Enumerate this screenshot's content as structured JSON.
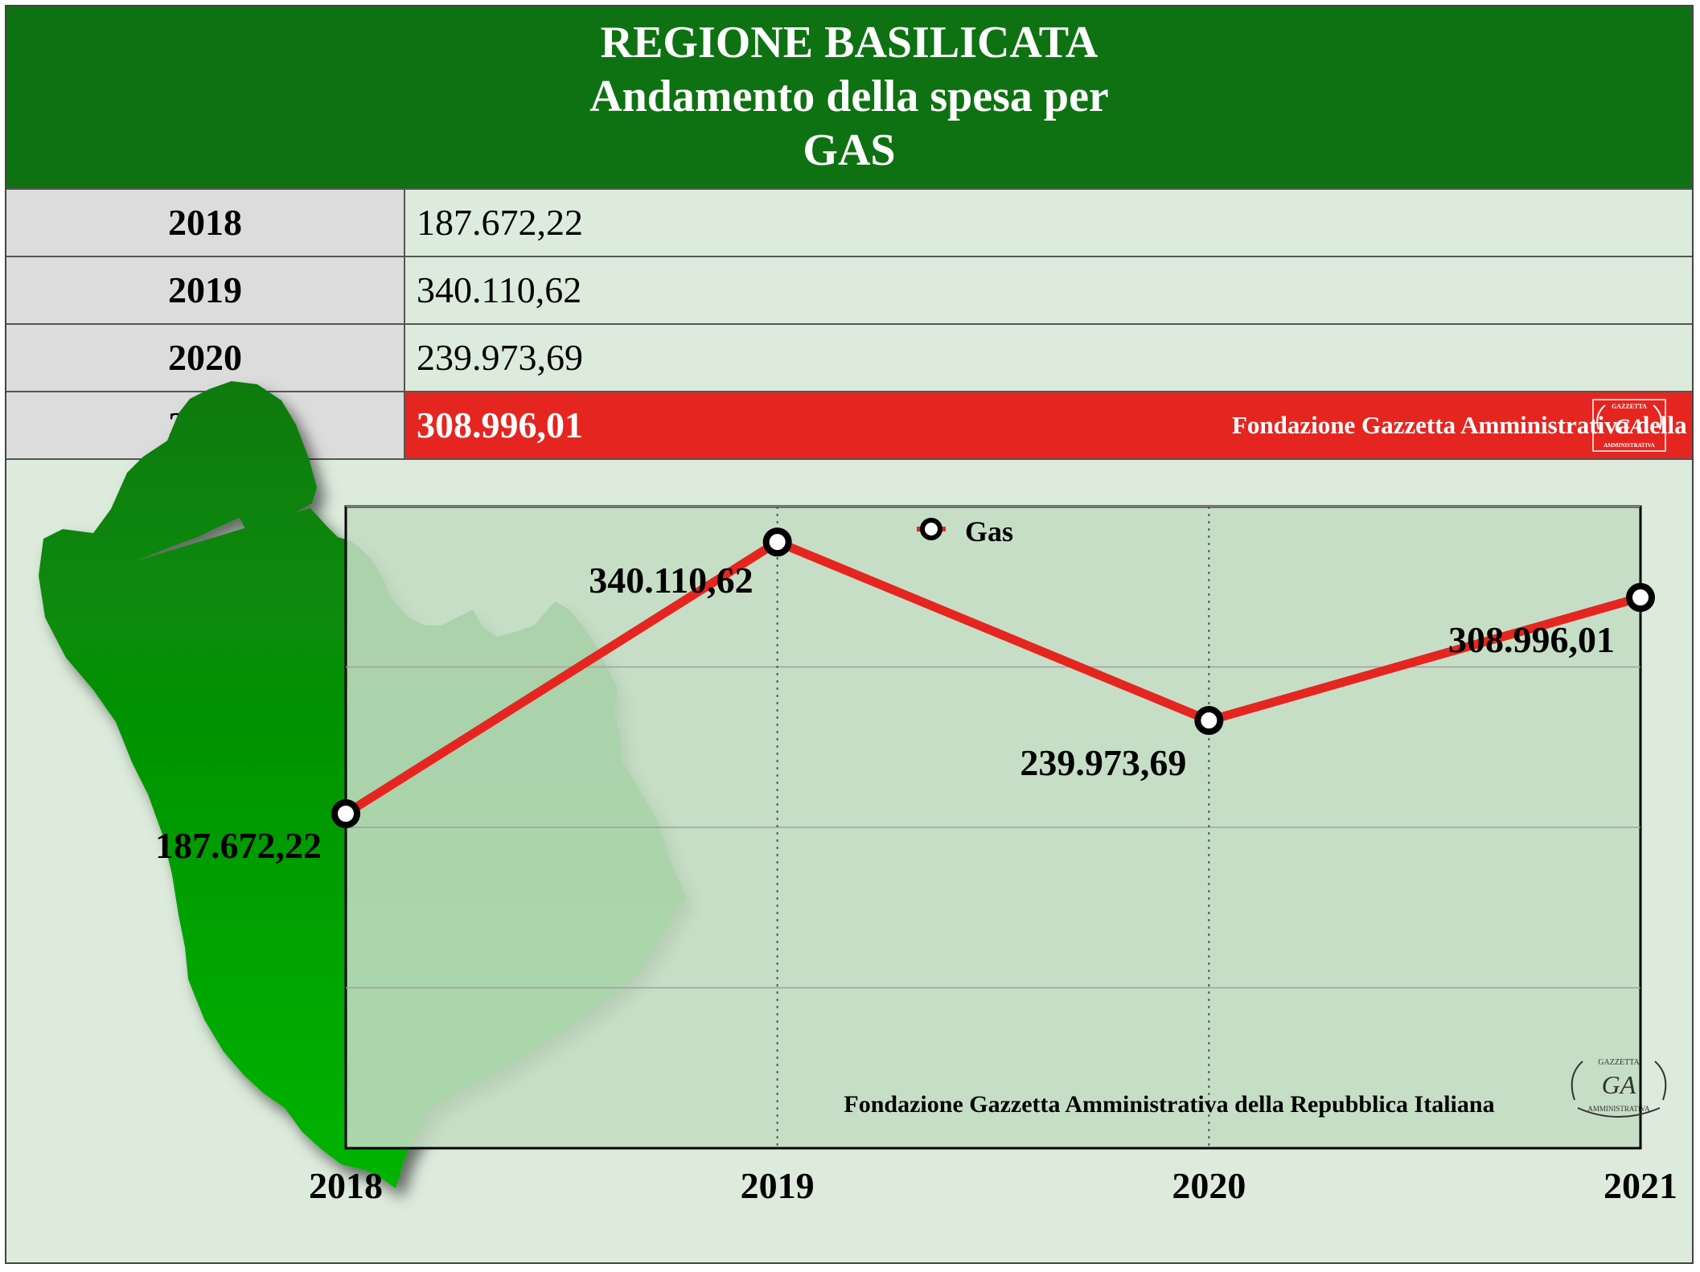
{
  "header": {
    "line1": "REGIONE BASILICATA",
    "line2": "Andamento della spesa per",
    "line3": "GAS"
  },
  "table": {
    "rows": [
      {
        "year": "2018",
        "value": "187.672,22"
      },
      {
        "year": "2019",
        "value": "340.110,62"
      },
      {
        "year": "2020",
        "value": "239.973,69"
      },
      {
        "year": "2021",
        "value": "308.996,01"
      }
    ],
    "footer_text": "Fondazione Gazzetta Amministrativa della Repubblica Italiana"
  },
  "logo": {
    "top_text": "GAZZETTA",
    "main_text": "GA",
    "bottom_text": "AMMINISTRATIVA"
  },
  "colors": {
    "header_green": "#0e7212",
    "line_red": "#e52620",
    "plot_bg": "#c3dcc3",
    "page_bg": "#dcebdc",
    "map_green_dark": "#0a7a0a",
    "map_green_light": "#00b400"
  },
  "chart_data": {
    "type": "line",
    "categories": [
      "2018",
      "2019",
      "2020",
      "2021"
    ],
    "series": [
      {
        "name": "Gas",
        "values": [
          187672.22,
          340110.62,
          239973.69,
          308996.01
        ],
        "labels": [
          "187.672,22",
          "340.110,62",
          "239.973,69",
          "308.996,01"
        ]
      }
    ],
    "ylim": [
      0,
      360000
    ],
    "grid": "horizontal lines and dotted vertical lines",
    "legend": "top-center",
    "watermark": "Fondazione Gazzetta Amministrativa della Repubblica Italiana"
  }
}
